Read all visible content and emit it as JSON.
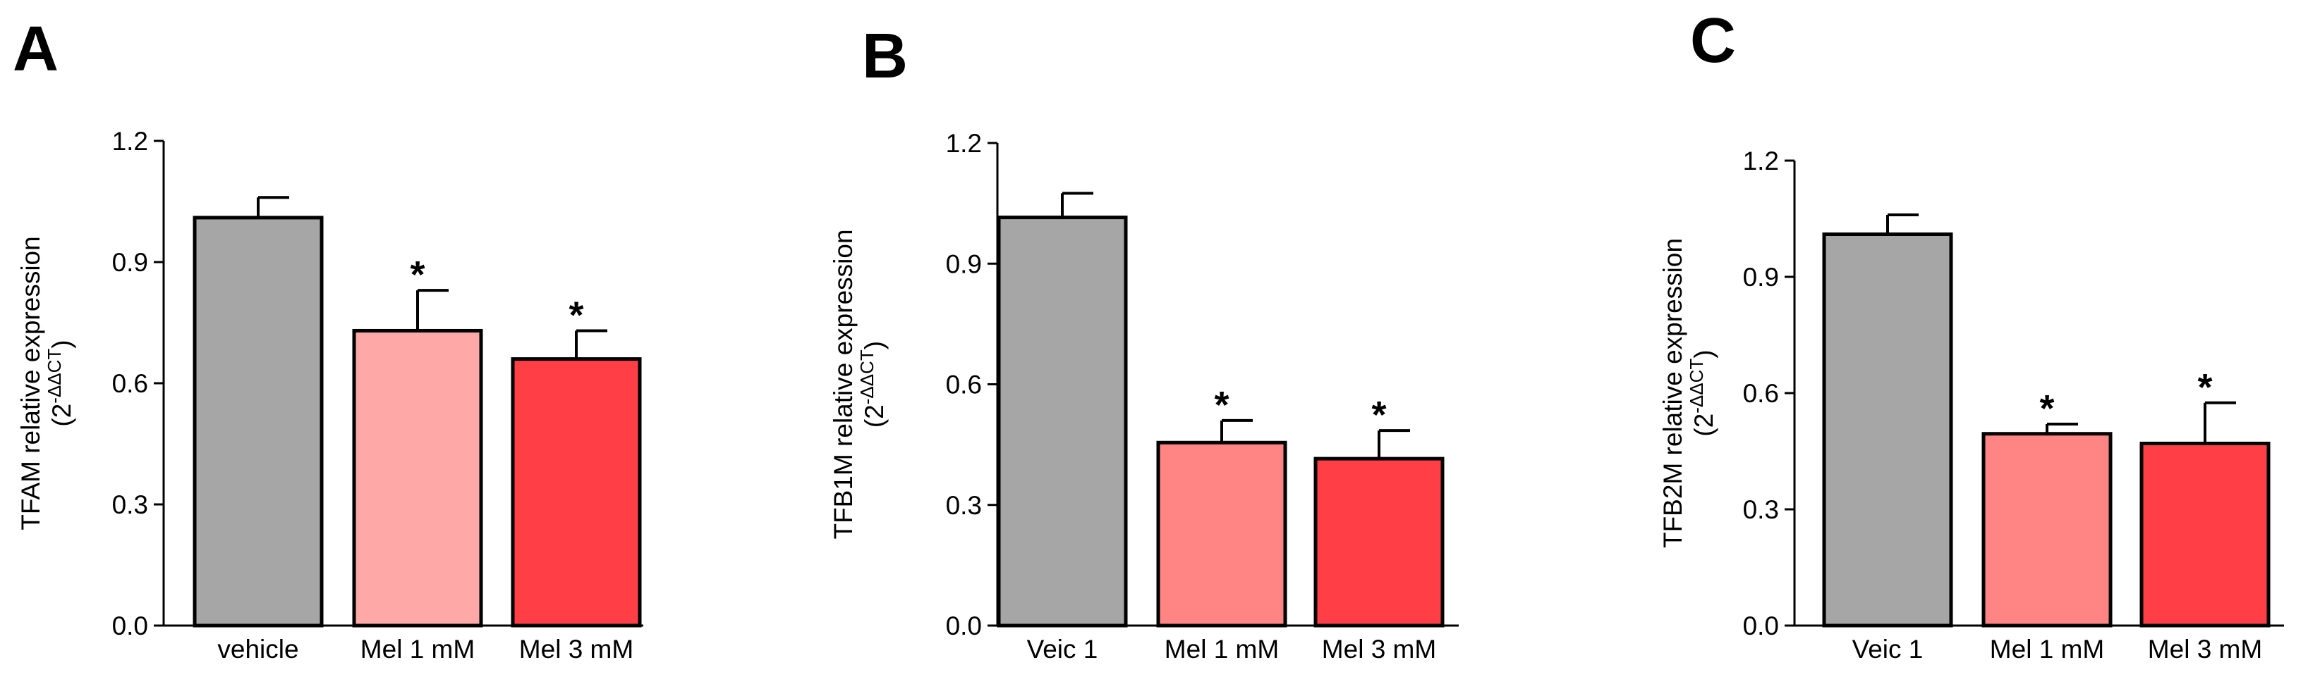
{
  "chart_data": [
    {
      "panel": "A",
      "type": "bar",
      "categories": [
        "vehicle",
        "Mel 1 mM",
        "Mel 3 mM"
      ],
      "values": [
        1.01,
        0.73,
        0.66
      ],
      "errors": [
        0.05,
        0.1,
        0.07
      ],
      "significance": [
        "",
        "*",
        "*"
      ],
      "colors": [
        "#a6a6a6",
        "#ffa8a8",
        "#ff3f45"
      ],
      "ylabel": "TFAM relative expression",
      "ylabel_sub": "(2",
      "ylabel_exp": "-ΔΔCT",
      "ylabel_close": ")",
      "ylim": [
        0,
        1.2
      ],
      "yticks": [
        "0.0",
        "0.3",
        "0.6",
        "0.9",
        "1.2"
      ],
      "xlabel": ""
    },
    {
      "panel": "B",
      "type": "bar",
      "categories": [
        "Veic 1",
        "Mel 1 mM",
        "Mel 3 mM"
      ],
      "values": [
        1.015,
        0.455,
        0.415
      ],
      "errors": [
        0.06,
        0.055,
        0.07
      ],
      "significance": [
        "",
        "*",
        "*"
      ],
      "colors": [
        "#a6a6a6",
        "#ff8585",
        "#ff3f45"
      ],
      "ylabel": "TFB1M relative expression",
      "ylabel_sub": "(2",
      "ylabel_exp": "-ΔΔCT",
      "ylabel_close": ")",
      "ylim": [
        0,
        1.2
      ],
      "yticks": [
        "0.0",
        "0.3",
        "0.6",
        "0.9",
        "1.2"
      ],
      "xlabel": ""
    },
    {
      "panel": "C",
      "type": "bar",
      "categories": [
        "Veic 1",
        "Mel 1 mM",
        "Mel 3 mM"
      ],
      "values": [
        1.01,
        0.495,
        0.47
      ],
      "errors": [
        0.05,
        0.025,
        0.105
      ],
      "significance": [
        "",
        "*",
        "*"
      ],
      "colors": [
        "#a6a6a6",
        "#ff8585",
        "#ff3f45"
      ],
      "ylabel": "TFB2M relative expression",
      "ylabel_sub": "(2",
      "ylabel_exp": "-ΔΔCT",
      "ylabel_close": ")",
      "ylim": [
        0,
        1.2
      ],
      "yticks": [
        "0.0",
        "0.3",
        "0.6",
        "0.9",
        "1.2"
      ],
      "xlabel": ""
    }
  ]
}
